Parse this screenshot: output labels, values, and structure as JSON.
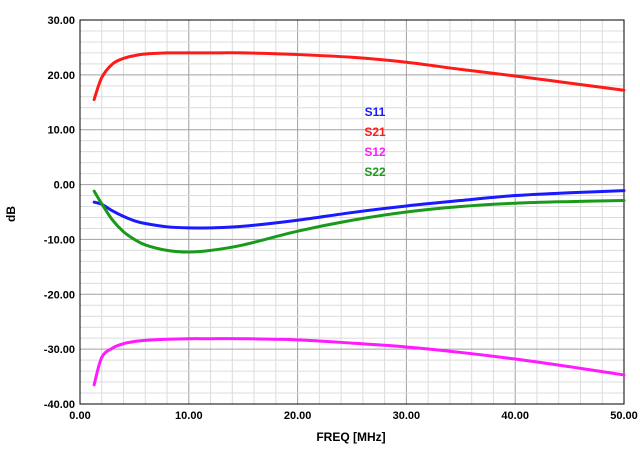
{
  "chart_data": {
    "type": "line",
    "xlabel": "FREQ [MHz]",
    "ylabel": "dB",
    "xlim": [
      0,
      50
    ],
    "ylim": [
      -40,
      30
    ],
    "xticks": [
      "0.00",
      "10.00",
      "20.00",
      "30.00",
      "40.00",
      "50.00"
    ],
    "yticks": [
      "30.00",
      "20.00",
      "10.00",
      "0.00",
      "-10.00",
      "-20.00",
      "-30.00",
      "-40.00"
    ],
    "x_tick_values": [
      0,
      10,
      20,
      30,
      40,
      50
    ],
    "y_tick_values": [
      30,
      20,
      10,
      0,
      -10,
      -20,
      -30,
      -40
    ],
    "grid": true,
    "legend_position": "center-right",
    "x": [
      1.3,
      2,
      3,
      4,
      5,
      6,
      8,
      10,
      12,
      15,
      20,
      25,
      30,
      35,
      40,
      45,
      50
    ],
    "series": [
      {
        "name": "S11",
        "color": "#1a1aff",
        "values": [
          -3.2,
          -3.6,
          -4.8,
          -5.8,
          -6.6,
          -7.1,
          -7.7,
          -7.9,
          -7.9,
          -7.6,
          -6.5,
          -5.1,
          -3.9,
          -2.9,
          -2.0,
          -1.5,
          -1.1
        ]
      },
      {
        "name": "S21",
        "color": "#ff1a1a",
        "values": [
          15.5,
          19.5,
          22.0,
          23.0,
          23.5,
          23.8,
          24.0,
          24.0,
          24.0,
          24.0,
          23.7,
          23.2,
          22.3,
          21.0,
          19.8,
          18.5,
          17.2
        ]
      },
      {
        "name": "S12",
        "color": "#ff1aff",
        "values": [
          -36.5,
          -31.5,
          -29.8,
          -29.0,
          -28.6,
          -28.4,
          -28.2,
          -28.1,
          -28.1,
          -28.1,
          -28.3,
          -28.9,
          -29.6,
          -30.6,
          -31.8,
          -33.2,
          -34.7
        ]
      },
      {
        "name": "S22",
        "color": "#1a9a1a",
        "values": [
          -1.2,
          -3.5,
          -6.5,
          -8.6,
          -10.0,
          -11.0,
          -12.0,
          -12.3,
          -12.0,
          -11.0,
          -8.5,
          -6.5,
          -5.0,
          -4.0,
          -3.4,
          -3.1,
          -2.9
        ]
      }
    ]
  }
}
